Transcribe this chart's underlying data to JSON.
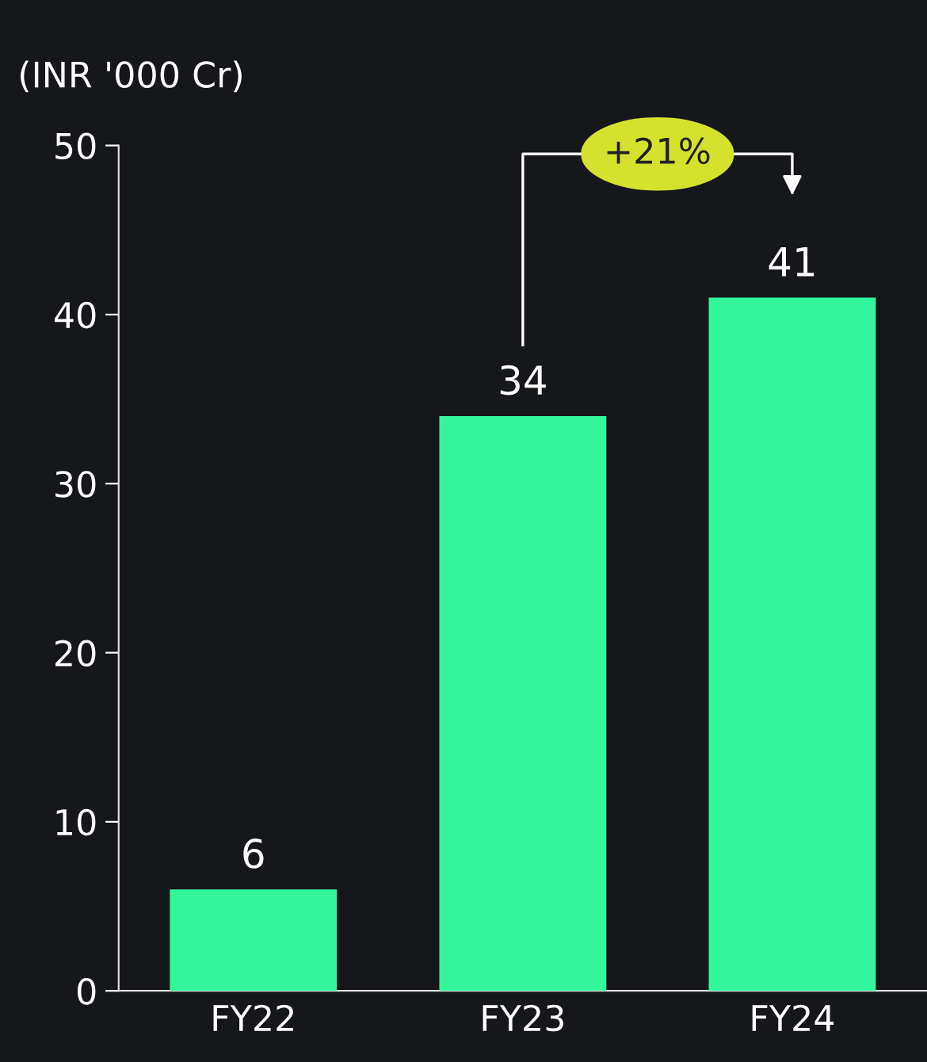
{
  "chart_data": {
    "type": "bar",
    "ylabel": "(INR '000 Cr)",
    "categories": [
      "FY22",
      "FY23",
      "FY24"
    ],
    "values": [
      6,
      34,
      41
    ],
    "color": "#33f59b",
    "ylim": [
      0,
      50
    ],
    "yticks": [
      0,
      10,
      20,
      30,
      40,
      50
    ],
    "grid": false,
    "data_labels": true,
    "annotations": [
      "+21%"
    ]
  }
}
